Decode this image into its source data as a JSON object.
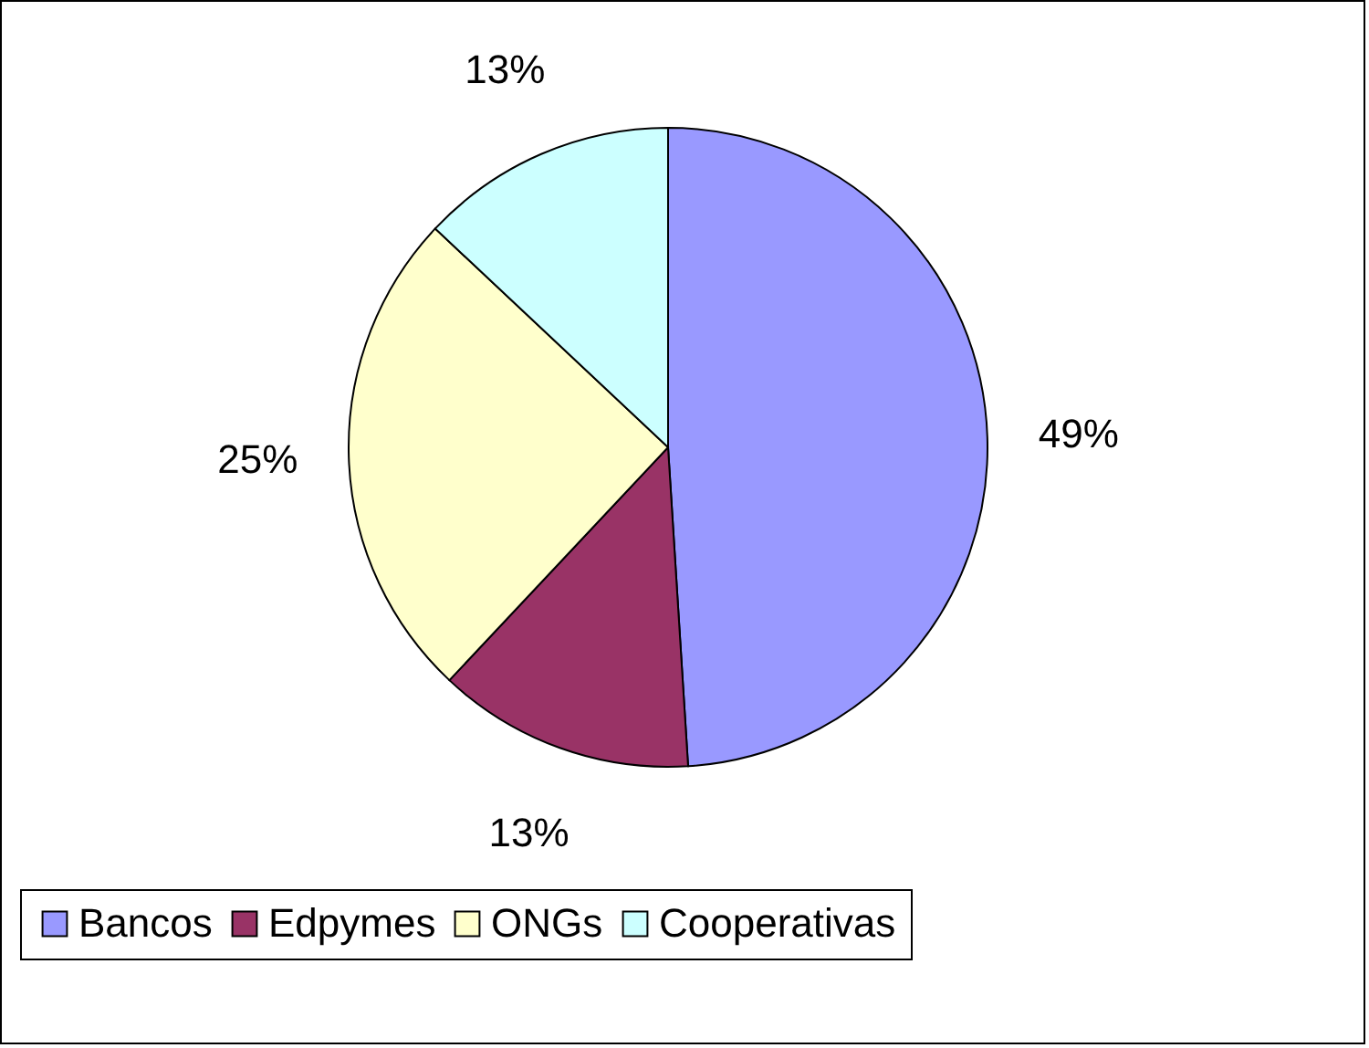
{
  "chart_data": {
    "type": "pie",
    "categories": [
      "Bancos",
      "Edpymes",
      "ONGs",
      "Cooperativas"
    ],
    "values": [
      49,
      13,
      25,
      13
    ],
    "colors": [
      "#9999ff",
      "#993366",
      "#ffffcc",
      "#ccffff"
    ],
    "value_labels": [
      "49%",
      "13%",
      "25%",
      "13%"
    ],
    "legend": "bottom"
  }
}
